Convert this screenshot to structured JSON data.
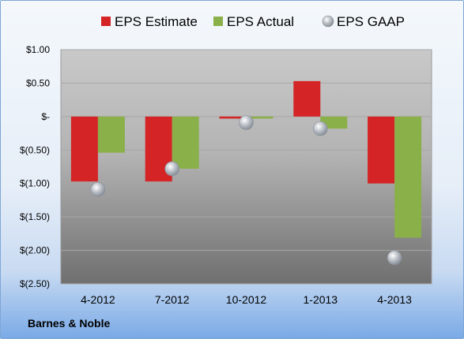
{
  "chart_data": {
    "type": "bar",
    "title": "",
    "xlabel": "",
    "ylabel": "",
    "categories": [
      "4-2012",
      "7-2012",
      "10-2012",
      "1-2013",
      "4-2013"
    ],
    "series": [
      {
        "name": "EPS Estimate",
        "kind": "bar",
        "color": "#d42426",
        "values": [
          -0.97,
          -0.97,
          -0.03,
          0.53,
          -1.0
        ]
      },
      {
        "name": "EPS Actual",
        "kind": "bar",
        "color": "#8ab04a",
        "values": [
          -0.54,
          -0.78,
          -0.03,
          -0.18,
          -1.81
        ]
      },
      {
        "name": "EPS GAAP",
        "kind": "marker",
        "color": "#b9bec6",
        "values": [
          -1.09,
          -0.78,
          -0.09,
          -0.18,
          -2.11
        ]
      }
    ],
    "ylim": [
      -2.5,
      1.0
    ],
    "yticks": [
      1.0,
      0.5,
      0.0,
      -0.5,
      -1.0,
      -1.5,
      -2.0,
      -2.5
    ],
    "ytick_labels": [
      "$1.00",
      "$0.50",
      "$-",
      "$(0.50)",
      "$(1.00)",
      "$(1.50)",
      "$(2.00)",
      "$(2.50)"
    ],
    "grid": true,
    "legend_position": "top"
  },
  "footer": {
    "source": "Barnes & Noble"
  }
}
